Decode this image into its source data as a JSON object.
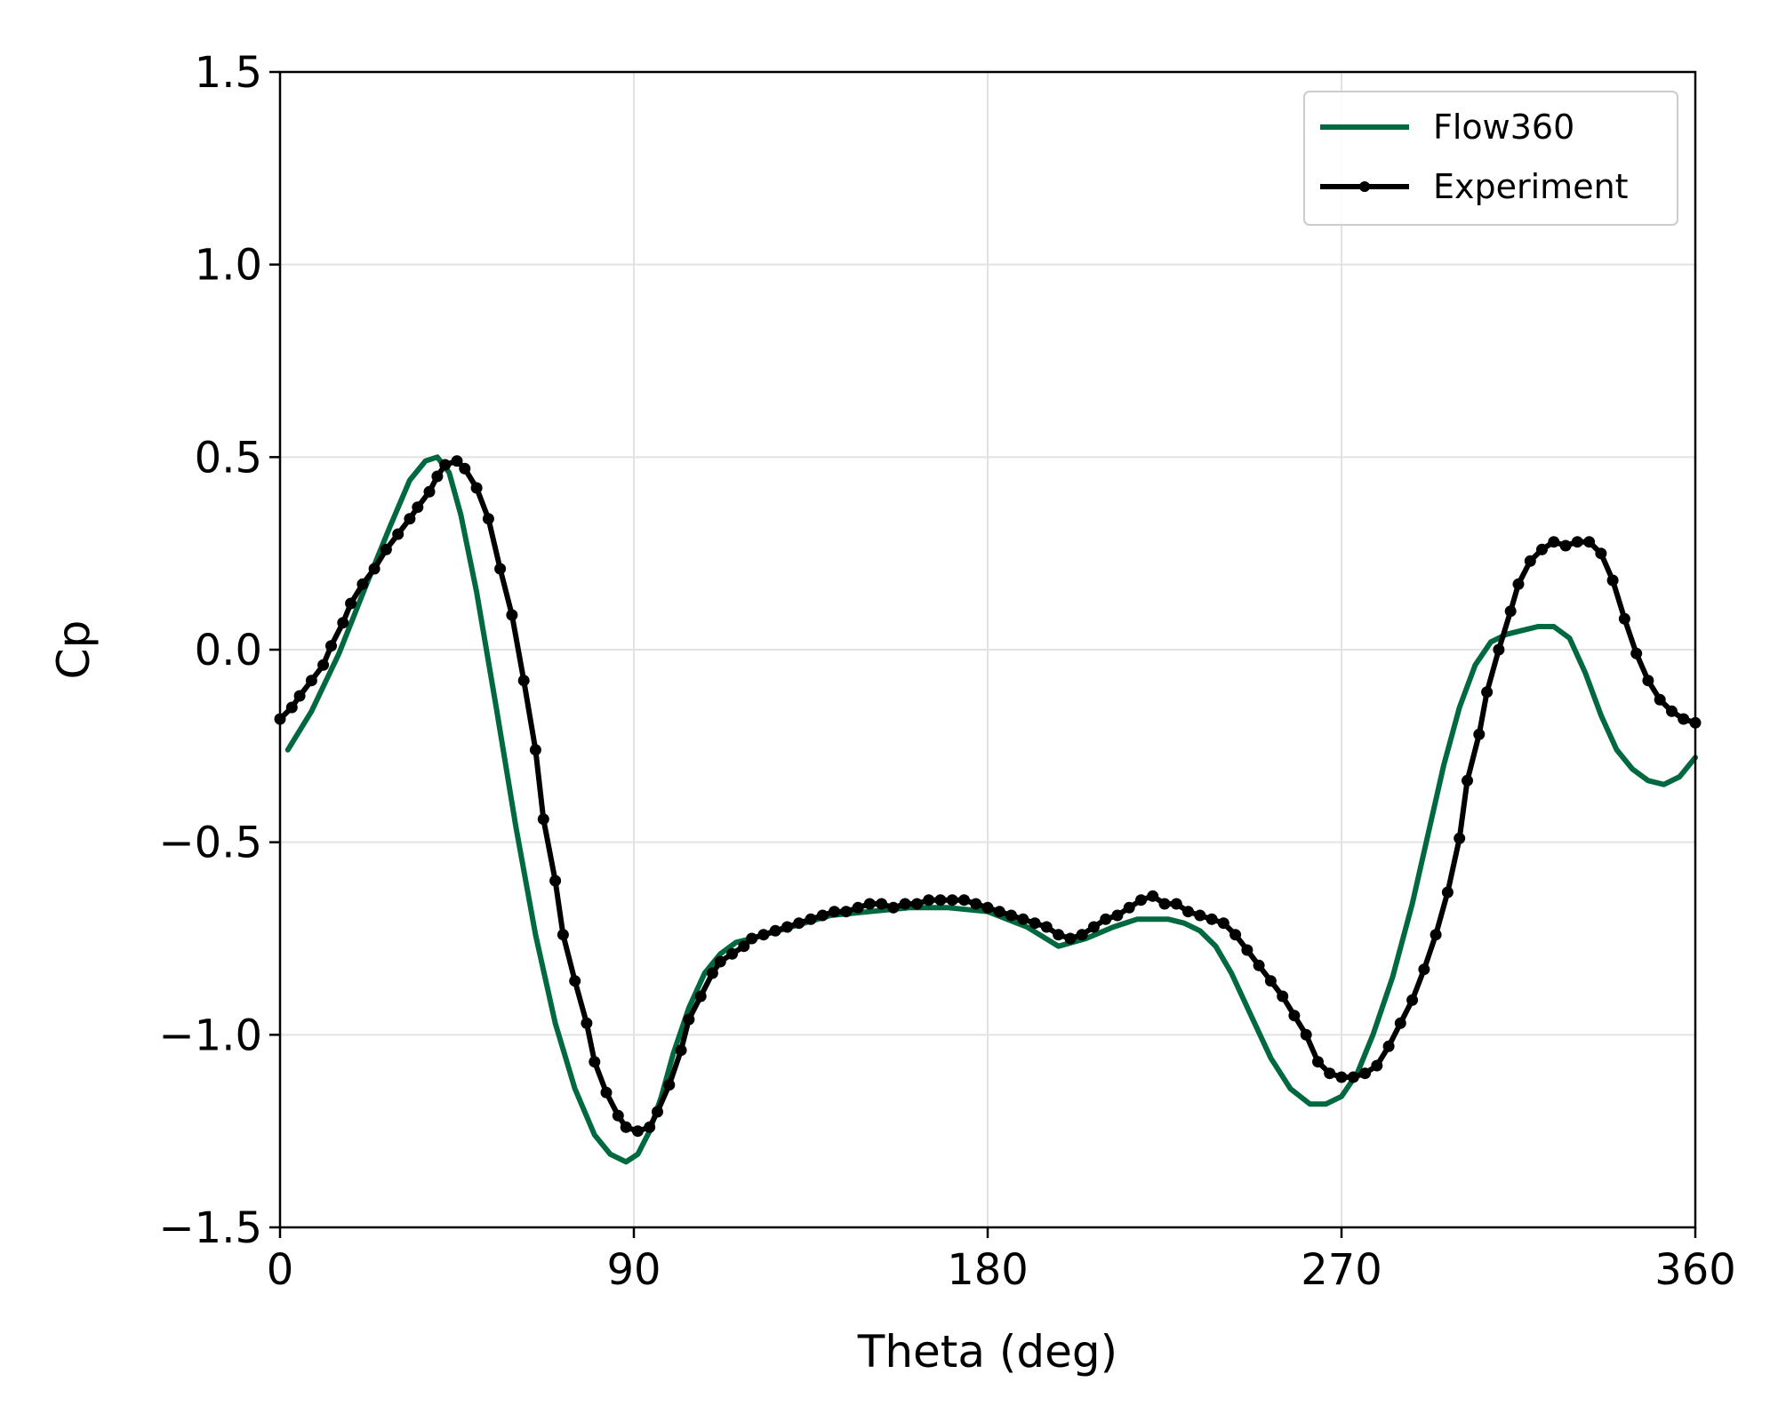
{
  "chart_data": {
    "type": "line",
    "title": "",
    "xlabel": "Theta (deg)",
    "ylabel": "Cp",
    "xlim": [
      0,
      360
    ],
    "ylim": [
      -1.5,
      1.5
    ],
    "xticks": [
      0,
      90,
      180,
      270,
      360
    ],
    "yticks": [
      -1.5,
      -1.0,
      -0.5,
      0.0,
      0.5,
      1.0,
      1.5
    ],
    "xtick_labels": [
      "0",
      "90",
      "180",
      "270",
      "360"
    ],
    "ytick_labels": [
      "−1.5",
      "−1.0",
      "−0.5",
      "0.0",
      "0.5",
      "1.0",
      "1.5"
    ],
    "grid": true,
    "legend_position": "top-right",
    "series": [
      {
        "name": "Flow360",
        "color": "#006940",
        "marker": "none",
        "x": [
          2,
          8,
          15,
          22,
          28,
          33,
          37,
          40,
          43,
          46,
          50,
          55,
          60,
          65,
          70,
          75,
          80,
          84,
          88,
          91,
          94,
          97,
          100,
          104,
          108,
          112,
          116,
          120,
          130,
          140,
          150,
          160,
          170,
          180,
          190,
          198,
          205,
          212,
          218,
          222,
          226,
          230,
          234,
          238,
          242,
          247,
          252,
          257,
          262,
          266,
          270,
          274,
          278,
          283,
          288,
          292,
          296,
          300,
          304,
          308,
          312,
          316,
          320,
          324,
          328,
          332,
          336,
          340,
          344,
          348,
          352,
          356,
          360
        ],
        "y": [
          -0.26,
          -0.16,
          -0.01,
          0.17,
          0.32,
          0.44,
          0.49,
          0.5,
          0.46,
          0.35,
          0.15,
          -0.15,
          -0.46,
          -0.74,
          -0.97,
          -1.14,
          -1.26,
          -1.31,
          -1.33,
          -1.31,
          -1.25,
          -1.16,
          -1.05,
          -0.93,
          -0.84,
          -0.79,
          -0.76,
          -0.75,
          -0.72,
          -0.69,
          -0.68,
          -0.67,
          -0.67,
          -0.68,
          -0.72,
          -0.77,
          -0.75,
          -0.72,
          -0.7,
          -0.7,
          -0.7,
          -0.71,
          -0.73,
          -0.77,
          -0.84,
          -0.95,
          -1.06,
          -1.14,
          -1.18,
          -1.18,
          -1.16,
          -1.1,
          -1.0,
          -0.85,
          -0.66,
          -0.48,
          -0.3,
          -0.15,
          -0.04,
          0.02,
          0.04,
          0.05,
          0.06,
          0.06,
          0.03,
          -0.06,
          -0.17,
          -0.26,
          -0.31,
          -0.34,
          -0.35,
          -0.33,
          -0.28
        ]
      },
      {
        "name": "Experiment",
        "color": "#000000",
        "marker": "dot",
        "x": [
          0,
          3,
          5,
          8,
          11,
          13,
          16,
          18,
          21,
          24,
          27,
          30,
          33,
          35,
          38,
          40,
          42,
          45,
          47,
          50,
          53,
          56,
          59,
          62,
          65,
          67,
          70,
          72,
          75,
          78,
          80,
          83,
          86,
          88,
          91,
          94,
          96,
          99,
          102,
          104,
          107,
          110,
          112,
          115,
          118,
          120,
          123,
          126,
          129,
          132,
          135,
          138,
          141,
          144,
          147,
          150,
          153,
          156,
          159,
          162,
          165,
          168,
          171,
          174,
          177,
          180,
          183,
          186,
          189,
          192,
          195,
          198,
          201,
          204,
          207,
          210,
          213,
          216,
          219,
          222,
          225,
          228,
          231,
          234,
          237,
          240,
          243,
          246,
          249,
          252,
          255,
          258,
          261,
          264,
          267,
          270,
          273,
          276,
          279,
          282,
          285,
          288,
          291,
          294,
          297,
          300,
          302,
          305,
          307,
          310,
          313,
          315,
          318,
          321,
          324,
          327,
          330,
          333,
          336,
          339,
          342,
          345,
          348,
          351,
          354,
          357,
          360
        ],
        "y": [
          -0.18,
          -0.15,
          -0.12,
          -0.08,
          -0.04,
          0.01,
          0.07,
          0.12,
          0.17,
          0.21,
          0.26,
          0.3,
          0.34,
          0.37,
          0.41,
          0.45,
          0.48,
          0.49,
          0.47,
          0.42,
          0.34,
          0.21,
          0.09,
          -0.08,
          -0.26,
          -0.44,
          -0.6,
          -0.74,
          -0.86,
          -0.97,
          -1.07,
          -1.15,
          -1.21,
          -1.24,
          -1.25,
          -1.24,
          -1.2,
          -1.13,
          -1.04,
          -0.96,
          -0.9,
          -0.84,
          -0.81,
          -0.79,
          -0.77,
          -0.75,
          -0.74,
          -0.73,
          -0.72,
          -0.71,
          -0.7,
          -0.69,
          -0.68,
          -0.68,
          -0.67,
          -0.66,
          -0.66,
          -0.67,
          -0.66,
          -0.66,
          -0.65,
          -0.65,
          -0.65,
          -0.65,
          -0.66,
          -0.67,
          -0.68,
          -0.69,
          -0.7,
          -0.71,
          -0.72,
          -0.74,
          -0.75,
          -0.74,
          -0.72,
          -0.7,
          -0.69,
          -0.67,
          -0.65,
          -0.64,
          -0.66,
          -0.66,
          -0.68,
          -0.69,
          -0.7,
          -0.71,
          -0.74,
          -0.78,
          -0.82,
          -0.86,
          -0.9,
          -0.95,
          -1.0,
          -1.07,
          -1.1,
          -1.11,
          -1.11,
          -1.1,
          -1.08,
          -1.03,
          -0.97,
          -0.91,
          -0.83,
          -0.74,
          -0.63,
          -0.49,
          -0.34,
          -0.22,
          -0.11,
          0.0,
          0.1,
          0.17,
          0.23,
          0.26,
          0.28,
          0.27,
          0.28,
          0.28,
          0.25,
          0.18,
          0.08,
          -0.01,
          -0.08,
          -0.13,
          -0.16,
          -0.18,
          -0.19
        ]
      }
    ]
  }
}
